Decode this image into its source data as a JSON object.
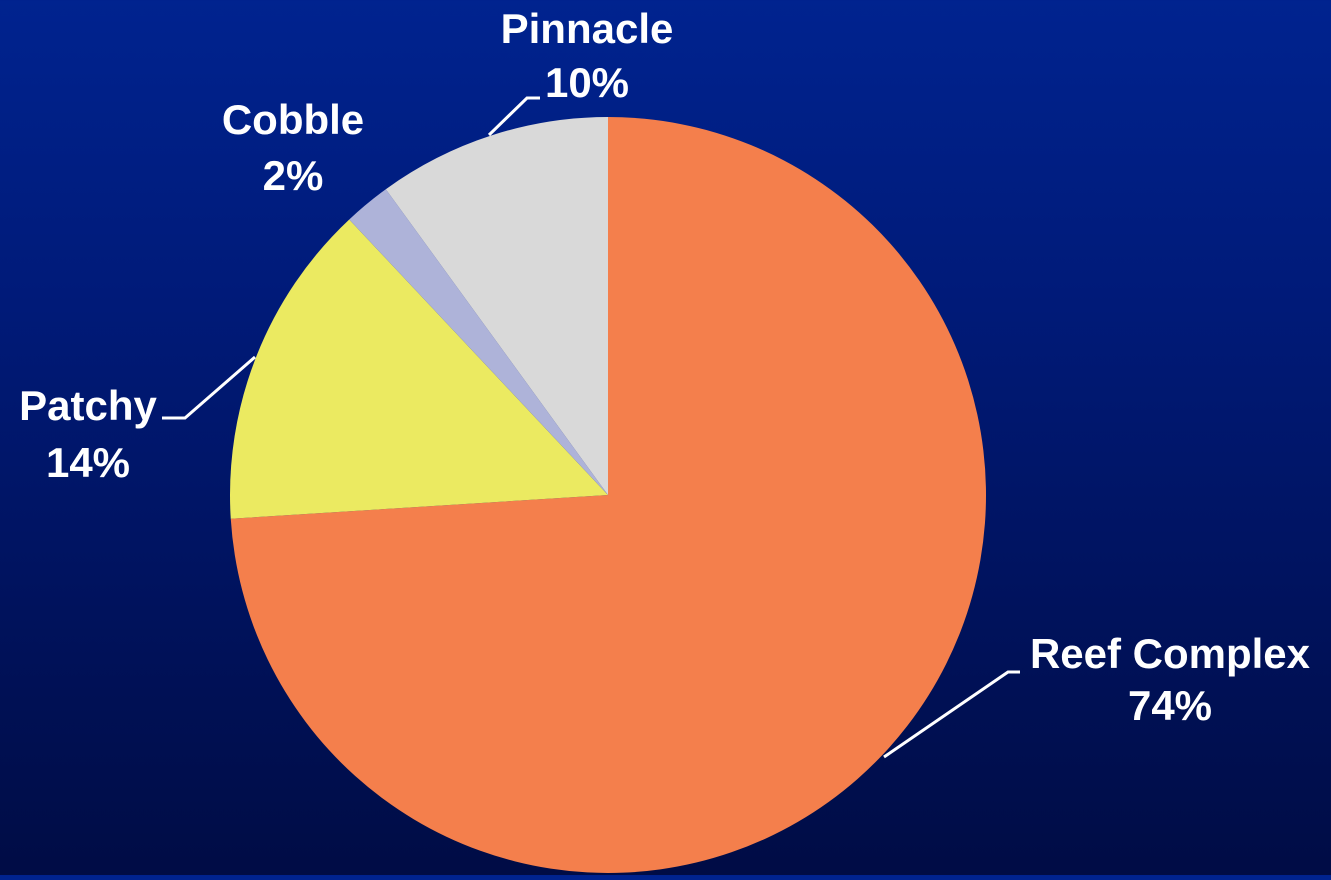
{
  "chart_data": {
    "type": "pie",
    "start_angle": "12 o'clock",
    "direction": "clockwise",
    "slices": [
      {
        "label": "Reef Complex",
        "value": 74,
        "value_label": "74%",
        "color": "#f47f4c"
      },
      {
        "label": "Patchy",
        "value": 14,
        "value_label": "14%",
        "color": "#ebea61"
      },
      {
        "label": "Cobble",
        "value": 2,
        "value_label": "2%",
        "color": "#aeb3d9"
      },
      {
        "label": "Pinnacle",
        "value": 10,
        "value_label": "10%",
        "color": "#d9d9d9"
      }
    ],
    "label_color": "#ffffff",
    "leader_line_color": "#ffffff",
    "legend": "none"
  }
}
